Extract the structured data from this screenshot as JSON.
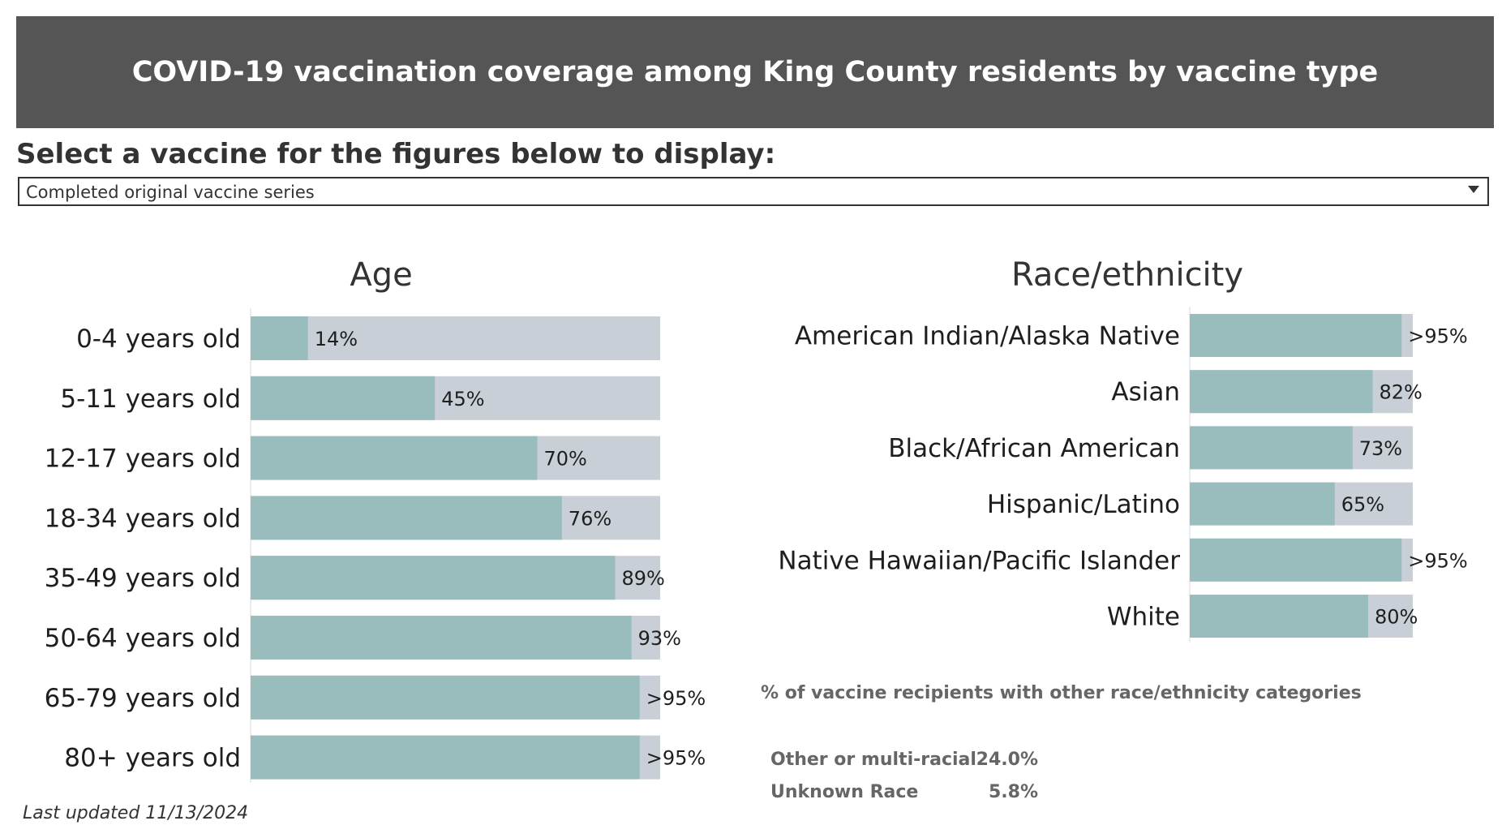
{
  "header": {
    "title": "COVID-19 vaccination coverage among King County residents by vaccine type"
  },
  "selector": {
    "label": "Select a vaccine for the figures below to display:",
    "selected": "Completed original vaccine series"
  },
  "colors": {
    "bar_fill": "#99bcbc",
    "bar_track": "#c9cfd6",
    "header_bg": "#555555"
  },
  "chart_data": [
    {
      "type": "bar",
      "orientation": "horizontal",
      "title": "Age",
      "categories": [
        "0-4 years old",
        "5-11 years old",
        "12-17 years old",
        "18-34 years old",
        "35-49 years old",
        "50-64 years old",
        "65-79 years old",
        "80+ years old"
      ],
      "values": [
        14,
        45,
        70,
        76,
        89,
        93,
        95,
        95
      ],
      "labels": [
        "14%",
        "45%",
        "70%",
        "76%",
        "89%",
        "93%",
        ">95%",
        ">95%"
      ],
      "xlim": [
        0,
        100
      ]
    },
    {
      "type": "bar",
      "orientation": "horizontal",
      "title": "Race/ethnicity",
      "categories": [
        "American Indian/Alaska Native",
        "Asian",
        "Black/African American",
        "Hispanic/Latino",
        "Native Hawaiian/Pacific Islander",
        "White"
      ],
      "values": [
        95,
        82,
        73,
        65,
        95,
        80
      ],
      "labels": [
        ">95%",
        "82%",
        "73%",
        "65%",
        ">95%",
        "80%"
      ],
      "xlim": [
        0,
        100
      ]
    }
  ],
  "other_categories": {
    "title": "% of vaccine recipients with other race/ethnicity categories",
    "rows": [
      {
        "label": "Other or multi-racial",
        "value": "24.0%"
      },
      {
        "label": "Unknown Race",
        "value": "5.8%"
      }
    ]
  },
  "footer": {
    "last_updated": "Last updated 11/13/2024"
  }
}
